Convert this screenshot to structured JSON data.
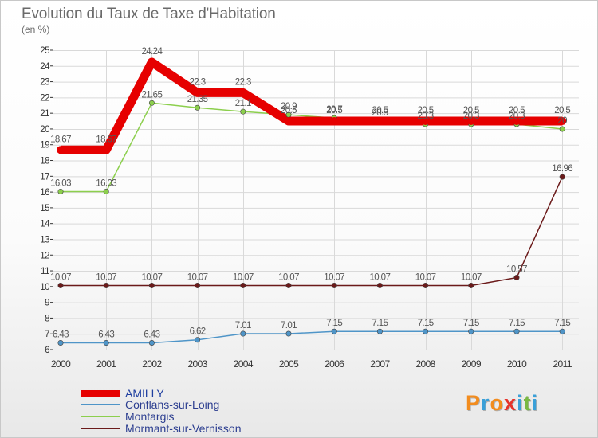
{
  "title": "Evolution du Taux de Taxe d'Habitation",
  "unit": "(en %)",
  "logo": {
    "text": "Proxiti",
    "letter_colors": [
      "#f28c1e",
      "#3aa0d8",
      "#f28c1e",
      "#e6332a",
      "#3aa0d8",
      "#7ab843",
      "#3aa0d8"
    ]
  },
  "chart_data": {
    "type": "line",
    "title": "Evolution du Taux de Taxe d'Habitation",
    "ylabel": "(en %)",
    "categories": [
      "2000",
      "2001",
      "2002",
      "2003",
      "2004",
      "2005",
      "2006",
      "2007",
      "2008",
      "2009",
      "2010",
      "2011"
    ],
    "yticks": [
      6,
      7,
      8,
      9,
      10,
      11,
      12,
      13,
      14,
      15,
      16,
      17,
      18,
      19,
      20,
      21,
      22,
      23,
      24,
      25
    ],
    "ylim": [
      6,
      25
    ],
    "grid": true,
    "legend_position": "bottom-left",
    "series": [
      {
        "name": "AMILLY",
        "color": "#e60000",
        "values": [
          18.67,
          18.67,
          24.24,
          22.3,
          22.3,
          20.5,
          20.5,
          20.5,
          20.5,
          20.5,
          20.5,
          20.5
        ],
        "labels": [
          "18.67",
          "18.67",
          "24.24",
          "22.3",
          "22.3",
          "20.5",
          "20.5",
          "20.5",
          "20.5",
          "20.5",
          "20.5",
          "20.5"
        ]
      },
      {
        "name": "Conflans-sur-Loing",
        "color": "#4f95c8",
        "values": [
          6.43,
          6.43,
          6.43,
          6.62,
          7.01,
          7.01,
          7.15,
          7.15,
          7.15,
          7.15,
          7.15,
          7.15
        ],
        "labels": [
          "6.43",
          "6.43",
          "6.43",
          "6.62",
          "7.01",
          "7.01",
          "7.15",
          "7.15",
          "7.15",
          "7.15",
          "7.15",
          "7.15"
        ]
      },
      {
        "name": "Montargis",
        "color": "#8ccf4d",
        "values": [
          16.03,
          16.03,
          21.65,
          21.35,
          21.1,
          20.9,
          20.7,
          20.5,
          20.3,
          20.3,
          20.3,
          20
        ],
        "labels": [
          "16.03",
          "16.03",
          "21.65",
          "21.35",
          "21.1",
          "20.9",
          "20.7",
          "20.5",
          "20.3",
          "20.3",
          "20.3",
          "20"
        ]
      },
      {
        "name": "Mormant-sur-Vernisson",
        "color": "#6b1a1a",
        "values": [
          10.07,
          10.07,
          10.07,
          10.07,
          10.07,
          10.07,
          10.07,
          10.07,
          10.07,
          10.07,
          10.57,
          16.96
        ],
        "labels": [
          "10.07",
          "10.07",
          "10.07",
          "10.07",
          "10.07",
          "10.07",
          "10.07",
          "10.07",
          "10.07",
          "10.07",
          "10.57",
          "16.96"
        ]
      }
    ]
  }
}
